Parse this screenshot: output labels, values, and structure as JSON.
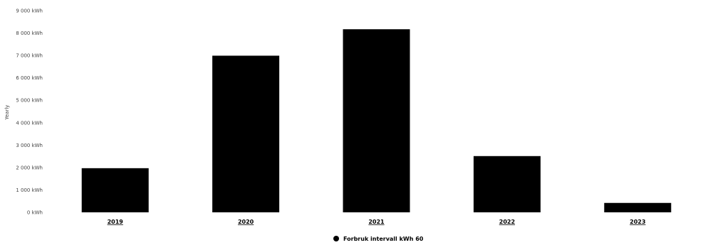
{
  "chart_data": {
    "type": "bar",
    "categories": [
      "2019",
      "2020",
      "2021",
      "2022",
      "2023"
    ],
    "series": [
      {
        "name": "Forbruk intervall kWh 60",
        "values": [
          1970,
          6990,
          8170,
          2510,
          420
        ]
      }
    ],
    "ylabel": "Yearly",
    "ylim": [
      0,
      9000
    ],
    "yticks": [
      {
        "value": 0,
        "label": "0 kWh"
      },
      {
        "value": 1000,
        "label": "1 000 kWh"
      },
      {
        "value": 2000,
        "label": "2 000 kWh"
      },
      {
        "value": 3000,
        "label": "3 000 kWh"
      },
      {
        "value": 4000,
        "label": "4 000 kWh"
      },
      {
        "value": 5000,
        "label": "5 000 kWh"
      },
      {
        "value": 6000,
        "label": "6 000 kWh"
      },
      {
        "value": 7000,
        "label": "7 000 kWh"
      },
      {
        "value": 8000,
        "label": "8 000 kWh"
      },
      {
        "value": 9000,
        "label": "9 000 kWh"
      }
    ],
    "bar_color": "#000000",
    "grid": false,
    "legend_position": "bottom-center"
  }
}
